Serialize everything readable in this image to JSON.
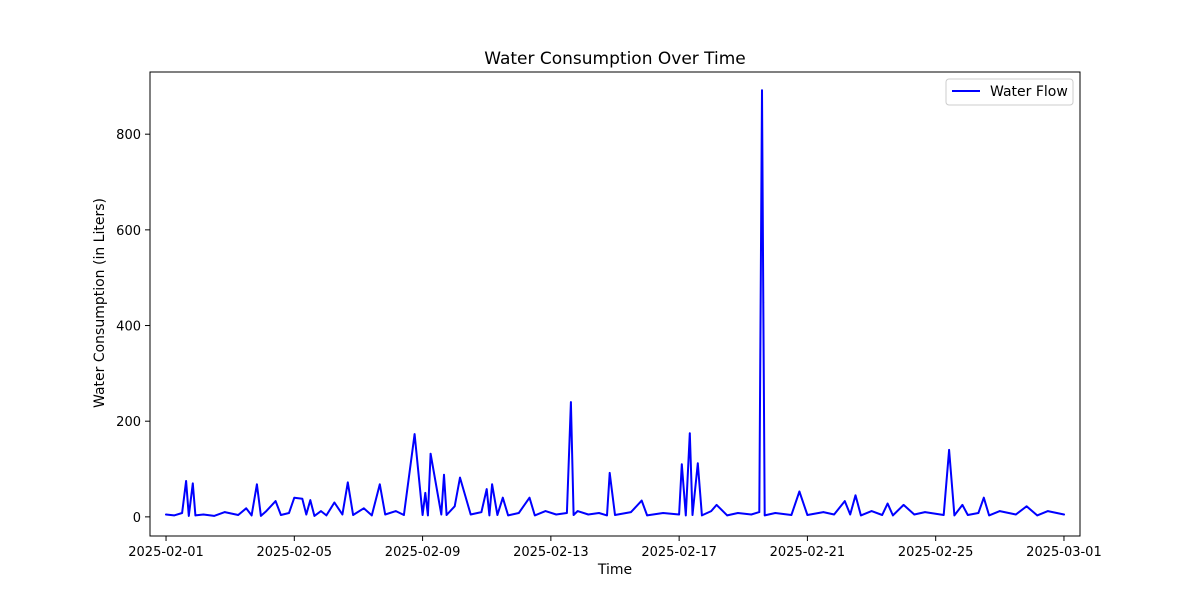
{
  "chart_data": {
    "type": "line",
    "title": "Water Consumption Over Time",
    "xlabel": "Time",
    "ylabel": "Water Consumption (in Liters)",
    "xlim": [
      "2025-01-31T12:00",
      "2025-03-01T12:00"
    ],
    "ylim": [
      -40,
      930
    ],
    "x_ticks": [
      "2025-02-01",
      "2025-02-05",
      "2025-02-09",
      "2025-02-13",
      "2025-02-17",
      "2025-02-21",
      "2025-02-25",
      "2025-03-01"
    ],
    "y_ticks": [
      0,
      200,
      400,
      600,
      800
    ],
    "legend_position": "top-right",
    "grid": false,
    "series": [
      {
        "name": "Water Flow",
        "color": "#0000ff",
        "points": [
          [
            "2025-02-01T00:00",
            5
          ],
          [
            "2025-02-01T06:00",
            3
          ],
          [
            "2025-02-01T12:00",
            8
          ],
          [
            "2025-02-01T15:00",
            75
          ],
          [
            "2025-02-01T17:00",
            2
          ],
          [
            "2025-02-01T20:00",
            70
          ],
          [
            "2025-02-01T22:00",
            3
          ],
          [
            "2025-02-02T04:00",
            5
          ],
          [
            "2025-02-02T12:00",
            2
          ],
          [
            "2025-02-02T20:00",
            10
          ],
          [
            "2025-02-03T06:00",
            4
          ],
          [
            "2025-02-03T12:00",
            18
          ],
          [
            "2025-02-03T16:00",
            3
          ],
          [
            "2025-02-03T20:00",
            68
          ],
          [
            "2025-02-03T23:00",
            2
          ],
          [
            "2025-02-04T03:00",
            12
          ],
          [
            "2025-02-04T10:00",
            33
          ],
          [
            "2025-02-04T14:00",
            4
          ],
          [
            "2025-02-04T20:00",
            8
          ],
          [
            "2025-02-05T00:00",
            40
          ],
          [
            "2025-02-05T06:00",
            38
          ],
          [
            "2025-02-05T09:00",
            5
          ],
          [
            "2025-02-05T12:00",
            35
          ],
          [
            "2025-02-05T15:00",
            2
          ],
          [
            "2025-02-05T20:00",
            12
          ],
          [
            "2025-02-06T00:00",
            3
          ],
          [
            "2025-02-06T06:00",
            30
          ],
          [
            "2025-02-06T12:00",
            5
          ],
          [
            "2025-02-06T16:00",
            72
          ],
          [
            "2025-02-06T20:00",
            4
          ],
          [
            "2025-02-07T04:00",
            18
          ],
          [
            "2025-02-07T10:00",
            3
          ],
          [
            "2025-02-07T16:00",
            68
          ],
          [
            "2025-02-07T20:00",
            5
          ],
          [
            "2025-02-08T04:00",
            12
          ],
          [
            "2025-02-08T10:00",
            4
          ],
          [
            "2025-02-08T18:00",
            173
          ],
          [
            "2025-02-09T00:00",
            4
          ],
          [
            "2025-02-09T02:00",
            50
          ],
          [
            "2025-02-09T04:00",
            3
          ],
          [
            "2025-02-09T06:00",
            132
          ],
          [
            "2025-02-09T14:00",
            5
          ],
          [
            "2025-02-09T16:00",
            88
          ],
          [
            "2025-02-09T18:00",
            4
          ],
          [
            "2025-02-10T00:00",
            22
          ],
          [
            "2025-02-10T04:00",
            82
          ],
          [
            "2025-02-10T12:00",
            5
          ],
          [
            "2025-02-10T20:00",
            10
          ],
          [
            "2025-02-11T00:00",
            58
          ],
          [
            "2025-02-11T02:00",
            3
          ],
          [
            "2025-02-11T04:00",
            68
          ],
          [
            "2025-02-11T08:00",
            4
          ],
          [
            "2025-02-11T12:00",
            40
          ],
          [
            "2025-02-11T16:00",
            3
          ],
          [
            "2025-02-12T00:00",
            8
          ],
          [
            "2025-02-12T08:00",
            40
          ],
          [
            "2025-02-12T12:00",
            3
          ],
          [
            "2025-02-12T20:00",
            12
          ],
          [
            "2025-02-13T04:00",
            5
          ],
          [
            "2025-02-13T12:00",
            8
          ],
          [
            "2025-02-13T15:00",
            240
          ],
          [
            "2025-02-13T17:00",
            4
          ],
          [
            "2025-02-13T20:00",
            12
          ],
          [
            "2025-02-14T04:00",
            5
          ],
          [
            "2025-02-14T12:00",
            8
          ],
          [
            "2025-02-14T18:00",
            3
          ],
          [
            "2025-02-14T20:00",
            92
          ],
          [
            "2025-02-15T00:00",
            4
          ],
          [
            "2025-02-15T12:00",
            10
          ],
          [
            "2025-02-15T20:00",
            34
          ],
          [
            "2025-02-16T00:00",
            3
          ],
          [
            "2025-02-16T12:00",
            8
          ],
          [
            "2025-02-17T00:00",
            5
          ],
          [
            "2025-02-17T02:00",
            110
          ],
          [
            "2025-02-17T05:00",
            3
          ],
          [
            "2025-02-17T08:00",
            175
          ],
          [
            "2025-02-17T10:00",
            4
          ],
          [
            "2025-02-17T14:00",
            112
          ],
          [
            "2025-02-17T17:00",
            3
          ],
          [
            "2025-02-18T00:00",
            12
          ],
          [
            "2025-02-18T04:00",
            25
          ],
          [
            "2025-02-18T12:00",
            3
          ],
          [
            "2025-02-18T20:00",
            8
          ],
          [
            "2025-02-19T06:00",
            5
          ],
          [
            "2025-02-19T12:00",
            10
          ],
          [
            "2025-02-19T14:00",
            892
          ],
          [
            "2025-02-19T15:00",
            448
          ],
          [
            "2025-02-19T16:00",
            3
          ],
          [
            "2025-02-20T00:00",
            8
          ],
          [
            "2025-02-20T12:00",
            4
          ],
          [
            "2025-02-20T18:00",
            53
          ],
          [
            "2025-02-21T00:00",
            4
          ],
          [
            "2025-02-21T12:00",
            10
          ],
          [
            "2025-02-21T20:00",
            5
          ],
          [
            "2025-02-22T04:00",
            33
          ],
          [
            "2025-02-22T08:00",
            5
          ],
          [
            "2025-02-22T12:00",
            45
          ],
          [
            "2025-02-22T16:00",
            3
          ],
          [
            "2025-02-23T00:00",
            12
          ],
          [
            "2025-02-23T08:00",
            4
          ],
          [
            "2025-02-23T12:00",
            28
          ],
          [
            "2025-02-23T16:00",
            3
          ],
          [
            "2025-02-24T00:00",
            25
          ],
          [
            "2025-02-24T08:00",
            5
          ],
          [
            "2025-02-24T16:00",
            10
          ],
          [
            "2025-02-25T06:00",
            4
          ],
          [
            "2025-02-25T10:00",
            140
          ],
          [
            "2025-02-25T14:00",
            3
          ],
          [
            "2025-02-25T20:00",
            25
          ],
          [
            "2025-02-26T00:00",
            4
          ],
          [
            "2025-02-26T08:00",
            8
          ],
          [
            "2025-02-26T12:00",
            40
          ],
          [
            "2025-02-26T16:00",
            3
          ],
          [
            "2025-02-27T00:00",
            12
          ],
          [
            "2025-02-27T12:00",
            5
          ],
          [
            "2025-02-27T20:00",
            22
          ],
          [
            "2025-02-28T04:00",
            3
          ],
          [
            "2025-02-28T12:00",
            12
          ],
          [
            "2025-03-01T00:00",
            5
          ]
        ]
      }
    ]
  }
}
